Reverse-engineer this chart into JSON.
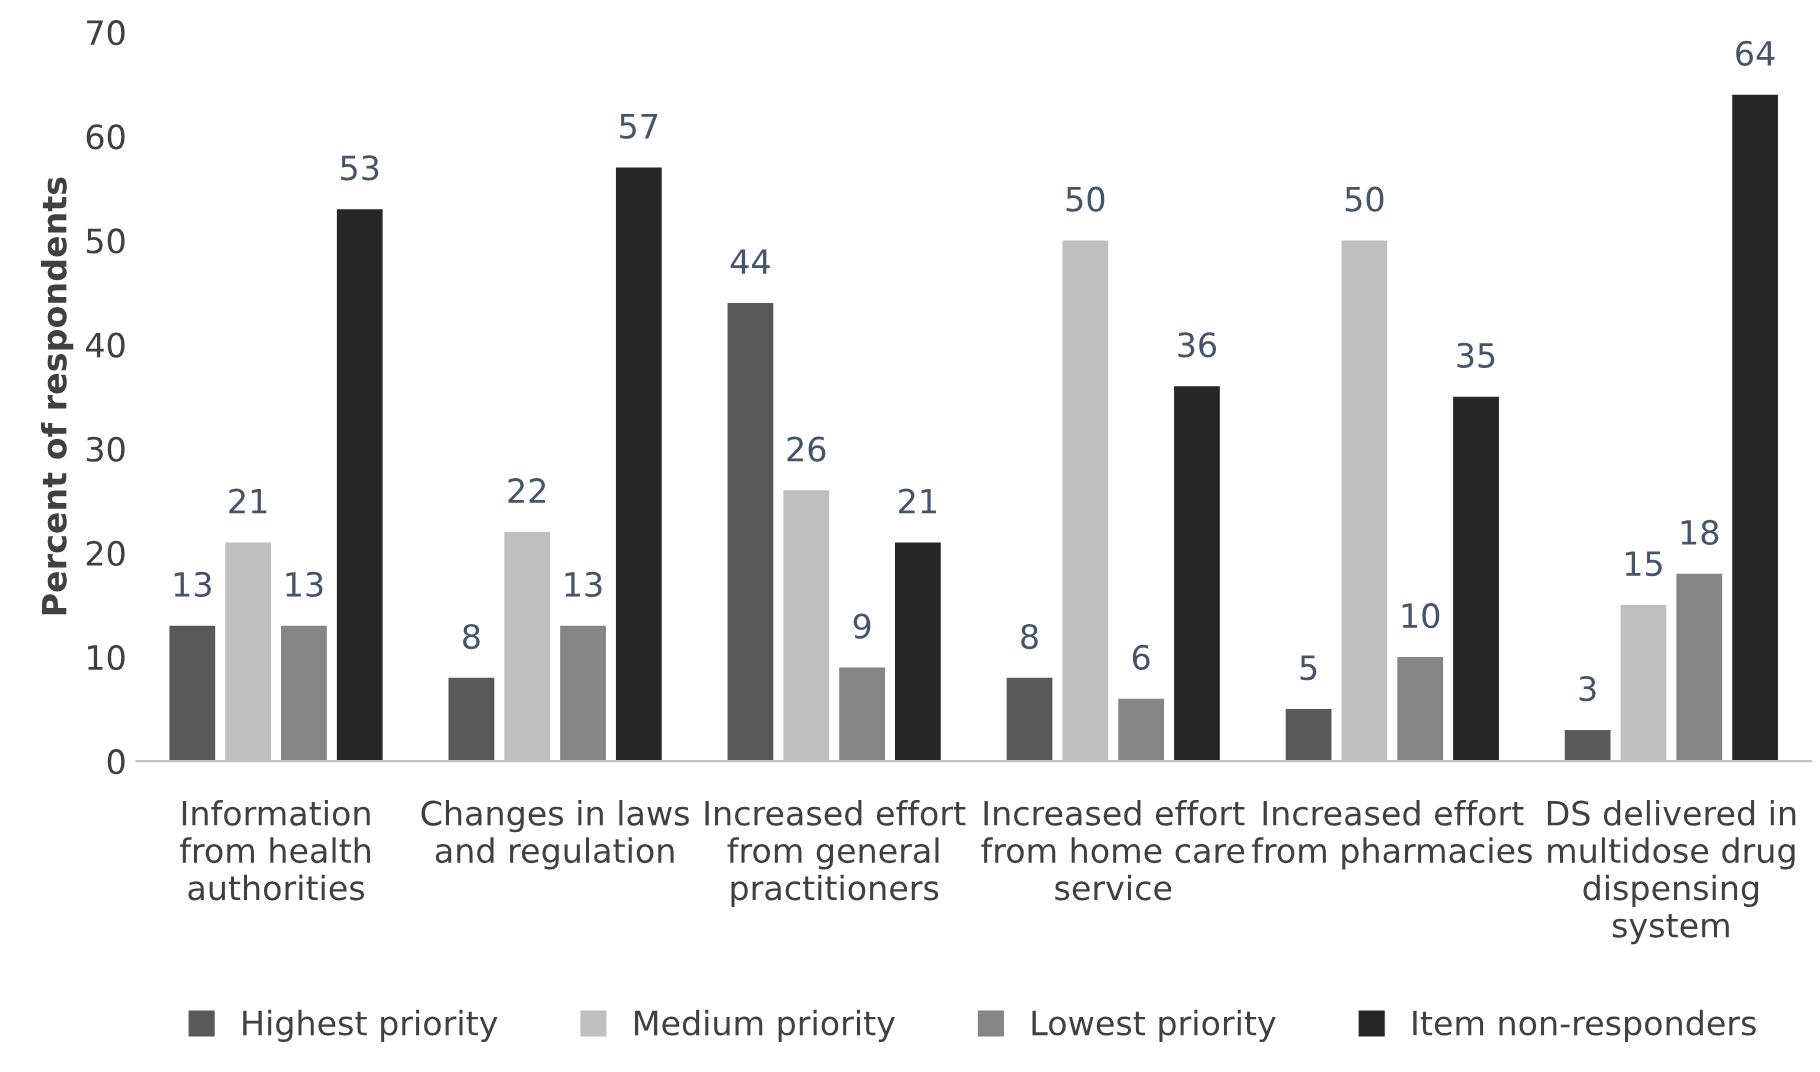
{
  "chart_data": {
    "type": "bar",
    "ylabel": "Percent of respondents",
    "categories": [
      "Information\nfrom health\nauthorities",
      "Changes in laws\nand regulation",
      "Increased effort\nfrom general\npractitioners",
      "Increased effort\nfrom home care\nservice",
      "Increased effort\nfrom pharmacies",
      "DS delivered in\nmultidose drug\ndispensing\nsystem"
    ],
    "series": [
      {
        "name": "Highest priority",
        "color": "#595959",
        "values": [
          13,
          8,
          44,
          8,
          5,
          3
        ]
      },
      {
        "name": "Medium priority",
        "color": "#bfbfbf",
        "values": [
          21,
          22,
          26,
          50,
          50,
          15
        ]
      },
      {
        "name": "Lowest priority",
        "color": "#858585",
        "values": [
          13,
          13,
          9,
          6,
          10,
          18
        ]
      },
      {
        "name": "Item non-responders",
        "color": "#262626",
        "values": [
          53,
          57,
          21,
          36,
          35,
          64
        ]
      }
    ],
    "ylim": [
      0,
      70
    ],
    "yticks": [
      0,
      10,
      20,
      30,
      40,
      50,
      60,
      70
    ],
    "data_labels": true,
    "grid": false,
    "legend": "bottom"
  }
}
